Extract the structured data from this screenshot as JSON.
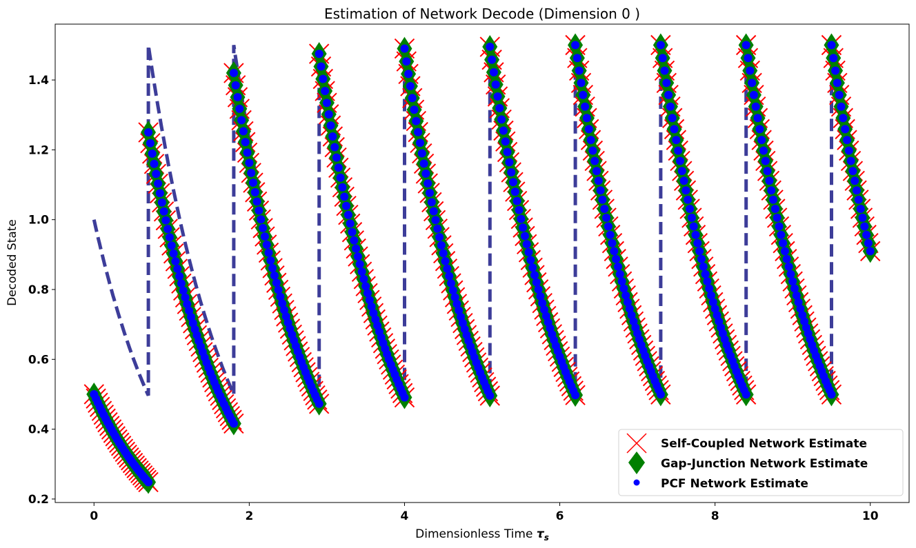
{
  "chart_data": {
    "type": "line",
    "title": "Estimation of Network Decode (Dimension 0 )",
    "xlabel": "Dimensionless Time",
    "xlabel_symbol": "τ",
    "xlabel_subscript": "s",
    "ylabel": "Decoded State",
    "xlim": [
      -0.5,
      10.5
    ],
    "ylim": [
      0.19,
      1.56
    ],
    "xticks": [
      0,
      2,
      4,
      6,
      8,
      10
    ],
    "xtick_labels": [
      "0",
      "2",
      "4",
      "6",
      "8",
      "10"
    ],
    "yticks": [
      0.2,
      0.4,
      0.6,
      0.8,
      1.0,
      1.2,
      1.4
    ],
    "ytick_labels": [
      "0.2",
      "0.4",
      "0.6",
      "0.8",
      "1.0",
      "1.2",
      "1.4"
    ],
    "grid": false,
    "legend_position": "lower-right",
    "decay_rate": 1.0,
    "segments": [
      {
        "t_start": 0.0,
        "t_end": 0.7,
        "y_start": 0.5
      },
      {
        "t_start": 0.7,
        "t_end": 1.8,
        "y_start": 1.25
      },
      {
        "t_start": 1.8,
        "t_end": 2.9,
        "y_start": 1.42
      },
      {
        "t_start": 2.9,
        "t_end": 4.0,
        "y_start": 1.475
      },
      {
        "t_start": 4.0,
        "t_end": 5.1,
        "y_start": 1.49
      },
      {
        "t_start": 5.1,
        "t_end": 6.2,
        "y_start": 1.495
      },
      {
        "t_start": 6.2,
        "t_end": 7.3,
        "y_start": 1.5
      },
      {
        "t_start": 7.3,
        "t_end": 8.4,
        "y_start": 1.5
      },
      {
        "t_start": 8.4,
        "t_end": 9.5,
        "y_start": 1.5
      },
      {
        "t_start": 9.5,
        "t_end": 10.0,
        "y_start": 1.5
      }
    ],
    "reference": {
      "style": "dashed",
      "color": "#3d3d99",
      "segments": [
        {
          "t_start": 0.0,
          "t_end": 0.7,
          "y_start": 1.0
        },
        {
          "t_start": 0.7,
          "t_end": 1.8,
          "y_start": 1.5
        },
        {
          "t_start": 1.8,
          "t_end": 2.9,
          "y_start": 1.5
        },
        {
          "t_start": 2.9,
          "t_end": 4.0,
          "y_start": 1.5
        },
        {
          "t_start": 4.0,
          "t_end": 5.1,
          "y_start": 1.5
        },
        {
          "t_start": 5.1,
          "t_end": 6.2,
          "y_start": 1.5
        },
        {
          "t_start": 6.2,
          "t_end": 7.3,
          "y_start": 1.5
        },
        {
          "t_start": 7.3,
          "t_end": 8.4,
          "y_start": 1.5
        },
        {
          "t_start": 8.4,
          "t_end": 9.5,
          "y_start": 1.5
        },
        {
          "t_start": 9.5,
          "t_end": 10.0,
          "y_start": 1.5
        }
      ]
    },
    "series": [
      {
        "name": "Self-Coupled Network Estimate",
        "marker": "x",
        "color": "#ff0000"
      },
      {
        "name": "Gap-Junction Network Estimate",
        "marker": "diamond",
        "color": "#008000"
      },
      {
        "name": "PCF Network Estimate",
        "marker": "dot",
        "color": "#0000ff"
      }
    ]
  }
}
